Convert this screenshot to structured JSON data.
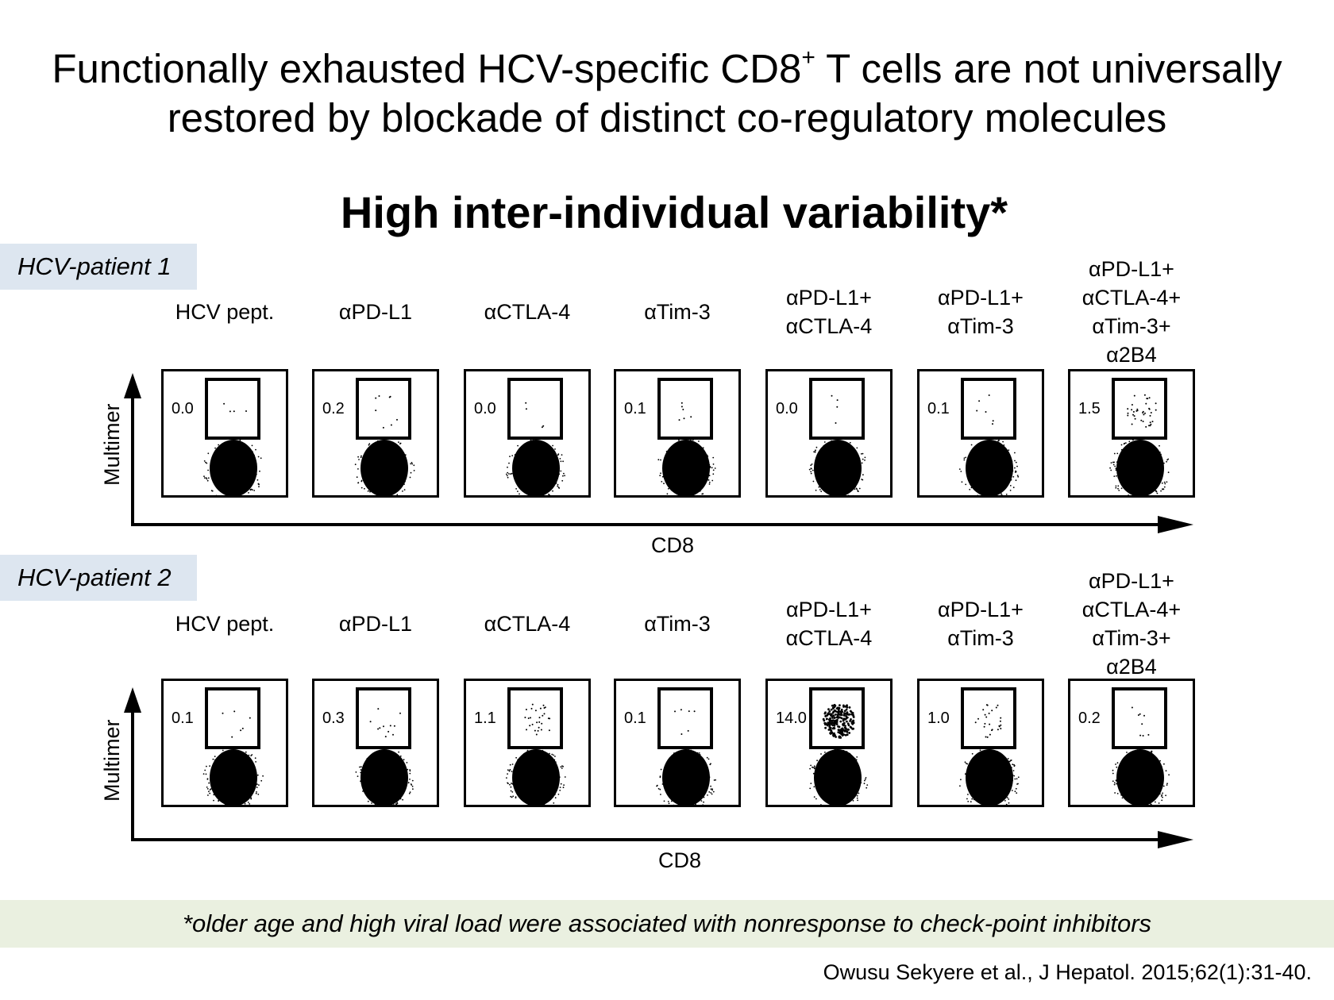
{
  "title_line1": "Functionally exhausted HCV-specific CD8",
  "title_sup": "+",
  "title_line1_end": " T cells are not universally",
  "title_line2": "restored by blockade of distinct co-regulatory molecules",
  "subtitle": "High inter-individual variability*",
  "conditions": [
    [
      "HCV pept."
    ],
    [
      "αPD-L1"
    ],
    [
      "αCTLA-4"
    ],
    [
      "αTim-3"
    ],
    [
      "αPD-L1+",
      "αCTLA-4"
    ],
    [
      "αPD-L1+",
      "αTim-3"
    ],
    [
      "αPD-L1+",
      "αCTLA-4+",
      "αTim-3+",
      "α2B4"
    ]
  ],
  "patients": [
    {
      "label": "HCV-patient 1",
      "values": [
        "0.0",
        "0.2",
        "0.0",
        "0.1",
        "0.0",
        "0.1",
        "1.5"
      ]
    },
    {
      "label": "HCV-patient 2",
      "values": [
        "0.1",
        "0.3",
        "1.1",
        "0.1",
        "14.0",
        "1.0",
        "0.2"
      ]
    }
  ],
  "y_axis_label": "Multimer",
  "x_axis_label": "CD8",
  "footnote": "*older age and high viral load were associated with nonresponse to check-point inhibitors",
  "citation": "Owusu Sekyere et al., J Hepatol. 2015;62(1):31-40."
}
